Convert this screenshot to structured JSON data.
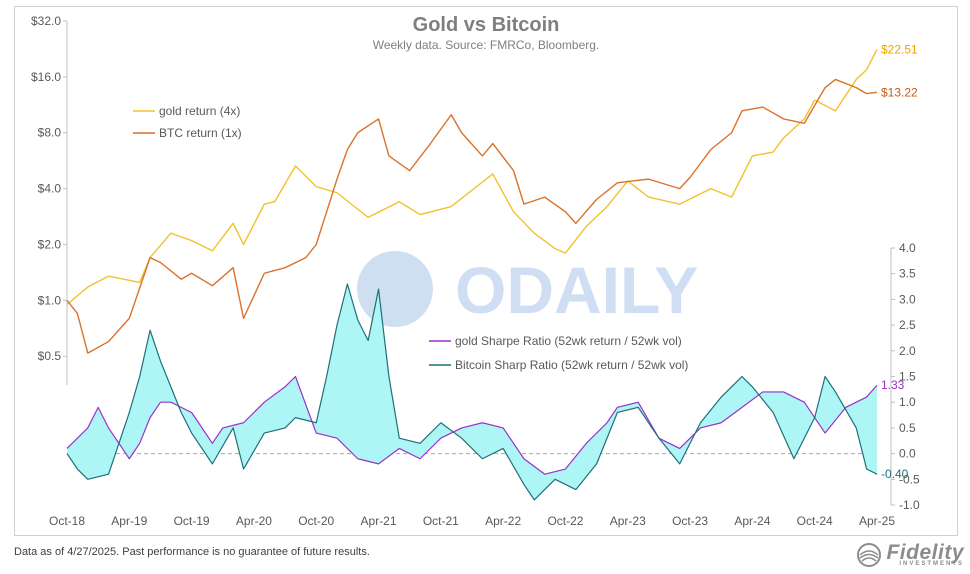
{
  "chart_data": [
    {
      "type": "line",
      "title": "Gold vs Bitcoin",
      "subtitle": "Weekly data.  Source: FMRCo, Bloomberg.",
      "y_scale": "log2",
      "ylim": [
        0.35,
        32
      ],
      "y_ticks": [
        "$32.0",
        "$16.0",
        "$8.0",
        "$4.0",
        "$2.0",
        "$1.0",
        "$0.5"
      ],
      "y_tick_values": [
        32,
        16,
        8,
        4,
        2,
        1,
        0.5
      ],
      "legend_position": "upper-left",
      "grid": false,
      "series": [
        {
          "name": "gold return (4x)",
          "color": "#f2c12e",
          "end_label": "$22.51",
          "points": [
            [
              "2018-10",
              0.95
            ],
            [
              "2018-12",
              1.18
            ],
            [
              "2019-02",
              1.35
            ],
            [
              "2019-05",
              1.25
            ],
            [
              "2019-06",
              1.7
            ],
            [
              "2019-08",
              2.3
            ],
            [
              "2019-10",
              2.1
            ],
            [
              "2019-12",
              1.85
            ],
            [
              "2020-02",
              2.6
            ],
            [
              "2020-03",
              2.0
            ],
            [
              "2020-05",
              3.3
            ],
            [
              "2020-06",
              3.4
            ],
            [
              "2020-08",
              5.3
            ],
            [
              "2020-10",
              4.1
            ],
            [
              "2020-12",
              3.8
            ],
            [
              "2021-03",
              2.8
            ],
            [
              "2021-06",
              3.4
            ],
            [
              "2021-08",
              2.9
            ],
            [
              "2021-11",
              3.2
            ],
            [
              "2022-03",
              4.8
            ],
            [
              "2022-05",
              3.0
            ],
            [
              "2022-07",
              2.3
            ],
            [
              "2022-09",
              1.9
            ],
            [
              "2022-10",
              1.8
            ],
            [
              "2022-12",
              2.5
            ],
            [
              "2023-02",
              3.2
            ],
            [
              "2023-04",
              4.4
            ],
            [
              "2023-06",
              3.6
            ],
            [
              "2023-09",
              3.3
            ],
            [
              "2023-12",
              4.0
            ],
            [
              "2024-02",
              3.6
            ],
            [
              "2024-04",
              6.0
            ],
            [
              "2024-06",
              6.3
            ],
            [
              "2024-07",
              7.5
            ],
            [
              "2024-09",
              9.5
            ],
            [
              "2024-10",
              12.0
            ],
            [
              "2024-12",
              10.5
            ],
            [
              "2025-02",
              15.5
            ],
            [
              "2025-03",
              17.5
            ],
            [
              "2025-04",
              22.51
            ]
          ]
        },
        {
          "name": "BTC return (1x)",
          "color": "#d9722b",
          "end_label": "$13.22",
          "points": [
            [
              "2018-10",
              1.0
            ],
            [
              "2018-11",
              0.85
            ],
            [
              "2018-12",
              0.52
            ],
            [
              "2019-02",
              0.6
            ],
            [
              "2019-04",
              0.8
            ],
            [
              "2019-06",
              1.7
            ],
            [
              "2019-07",
              1.6
            ],
            [
              "2019-09",
              1.3
            ],
            [
              "2019-10",
              1.4
            ],
            [
              "2019-12",
              1.2
            ],
            [
              "2020-02",
              1.5
            ],
            [
              "2020-03",
              0.8
            ],
            [
              "2020-05",
              1.4
            ],
            [
              "2020-07",
              1.5
            ],
            [
              "2020-09",
              1.7
            ],
            [
              "2020-10",
              2.0
            ],
            [
              "2020-11",
              3.0
            ],
            [
              "2020-12",
              4.5
            ],
            [
              "2021-01",
              6.5
            ],
            [
              "2021-02",
              8.0
            ],
            [
              "2021-04",
              9.5
            ],
            [
              "2021-05",
              6.0
            ],
            [
              "2021-07",
              5.0
            ],
            [
              "2021-09",
              7.0
            ],
            [
              "2021-11",
              10.0
            ],
            [
              "2021-12",
              8.0
            ],
            [
              "2022-02",
              6.0
            ],
            [
              "2022-03",
              7.0
            ],
            [
              "2022-05",
              5.0
            ],
            [
              "2022-06",
              3.3
            ],
            [
              "2022-08",
              3.6
            ],
            [
              "2022-10",
              3.0
            ],
            [
              "2022-11",
              2.6
            ],
            [
              "2023-01",
              3.5
            ],
            [
              "2023-03",
              4.3
            ],
            [
              "2023-06",
              4.5
            ],
            [
              "2023-09",
              4.0
            ],
            [
              "2023-10",
              4.6
            ],
            [
              "2023-12",
              6.5
            ],
            [
              "2024-02",
              8.0
            ],
            [
              "2024-03",
              10.5
            ],
            [
              "2024-05",
              11.0
            ],
            [
              "2024-07",
              9.5
            ],
            [
              "2024-09",
              9.0
            ],
            [
              "2024-11",
              14.0
            ],
            [
              "2024-12",
              15.5
            ],
            [
              "2025-02",
              14.0
            ],
            [
              "2025-03",
              13.0
            ],
            [
              "2025-04",
              13.22
            ]
          ]
        }
      ]
    },
    {
      "type": "area",
      "y_scale": "linear",
      "ylim": [
        -1.0,
        4.0
      ],
      "y_ticks": [
        "4.0",
        "3.5",
        "3.0",
        "2.5",
        "2.0",
        "1.5",
        "1.0",
        "0.5",
        "0.0",
        "-0.5",
        "-1.0"
      ],
      "y_tick_values": [
        4.0,
        3.5,
        3.0,
        2.5,
        2.0,
        1.5,
        1.0,
        0.5,
        0.0,
        -0.5,
        -1.0
      ],
      "zero_line": "dashed",
      "fill_between_series": "#aef5f5",
      "legend_position": "center",
      "series": [
        {
          "name": "gold Sharpe Ratio (52wk return / 52wk vol)",
          "color": "#9b30c8",
          "end_label": "1.33",
          "points": [
            [
              "2018-10",
              0.1
            ],
            [
              "2018-12",
              0.5
            ],
            [
              "2019-01",
              0.9
            ],
            [
              "2019-02",
              0.5
            ],
            [
              "2019-04",
              -0.1
            ],
            [
              "2019-05",
              0.2
            ],
            [
              "2019-06",
              0.7
            ],
            [
              "2019-07",
              1.0
            ],
            [
              "2019-08",
              1.0
            ],
            [
              "2019-10",
              0.8
            ],
            [
              "2019-12",
              0.2
            ],
            [
              "2020-01",
              0.5
            ],
            [
              "2020-03",
              0.6
            ],
            [
              "2020-05",
              1.0
            ],
            [
              "2020-07",
              1.3
            ],
            [
              "2020-08",
              1.5
            ],
            [
              "2020-10",
              0.4
            ],
            [
              "2020-12",
              0.3
            ],
            [
              "2021-02",
              -0.1
            ],
            [
              "2021-04",
              -0.2
            ],
            [
              "2021-06",
              0.1
            ],
            [
              "2021-08",
              -0.1
            ],
            [
              "2021-10",
              0.3
            ],
            [
              "2021-12",
              0.5
            ],
            [
              "2022-02",
              0.6
            ],
            [
              "2022-04",
              0.5
            ],
            [
              "2022-06",
              -0.1
            ],
            [
              "2022-08",
              -0.4
            ],
            [
              "2022-10",
              -0.3
            ],
            [
              "2022-12",
              0.2
            ],
            [
              "2023-02",
              0.6
            ],
            [
              "2023-03",
              0.9
            ],
            [
              "2023-05",
              1.0
            ],
            [
              "2023-07",
              0.3
            ],
            [
              "2023-09",
              0.1
            ],
            [
              "2023-11",
              0.5
            ],
            [
              "2024-01",
              0.6
            ],
            [
              "2024-03",
              0.9
            ],
            [
              "2024-05",
              1.2
            ],
            [
              "2024-07",
              1.2
            ],
            [
              "2024-09",
              1.0
            ],
            [
              "2024-11",
              0.4
            ],
            [
              "2025-01",
              0.9
            ],
            [
              "2025-03",
              1.1
            ],
            [
              "2025-04",
              1.33
            ]
          ]
        },
        {
          "name": "Bitcoin Sharp Ratio (52wk return / 52wk vol)",
          "color": "#1f6f7a",
          "end_label": "-0.40",
          "points": [
            [
              "2018-10",
              0.0
            ],
            [
              "2018-11",
              -0.3
            ],
            [
              "2018-12",
              -0.5
            ],
            [
              "2019-02",
              -0.4
            ],
            [
              "2019-04",
              0.8
            ],
            [
              "2019-05",
              1.5
            ],
            [
              "2019-06",
              2.4
            ],
            [
              "2019-07",
              1.8
            ],
            [
              "2019-09",
              0.8
            ],
            [
              "2019-10",
              0.4
            ],
            [
              "2019-12",
              -0.2
            ],
            [
              "2020-02",
              0.5
            ],
            [
              "2020-03",
              -0.3
            ],
            [
              "2020-05",
              0.4
            ],
            [
              "2020-07",
              0.5
            ],
            [
              "2020-08",
              0.7
            ],
            [
              "2020-10",
              0.6
            ],
            [
              "2020-11",
              1.5
            ],
            [
              "2020-12",
              2.5
            ],
            [
              "2021-01",
              3.3
            ],
            [
              "2021-02",
              2.6
            ],
            [
              "2021-03",
              2.2
            ],
            [
              "2021-04",
              3.2
            ],
            [
              "2021-05",
              1.5
            ],
            [
              "2021-06",
              0.3
            ],
            [
              "2021-08",
              0.2
            ],
            [
              "2021-10",
              0.6
            ],
            [
              "2021-12",
              0.3
            ],
            [
              "2022-02",
              -0.1
            ],
            [
              "2022-04",
              0.1
            ],
            [
              "2022-06",
              -0.6
            ],
            [
              "2022-07",
              -0.9
            ],
            [
              "2022-09",
              -0.5
            ],
            [
              "2022-11",
              -0.7
            ],
            [
              "2023-01",
              -0.2
            ],
            [
              "2023-03",
              0.8
            ],
            [
              "2023-05",
              0.9
            ],
            [
              "2023-07",
              0.3
            ],
            [
              "2023-09",
              -0.2
            ],
            [
              "2023-11",
              0.6
            ],
            [
              "2024-01",
              1.1
            ],
            [
              "2024-03",
              1.5
            ],
            [
              "2024-04",
              1.3
            ],
            [
              "2024-06",
              0.8
            ],
            [
              "2024-08",
              -0.1
            ],
            [
              "2024-10",
              0.7
            ],
            [
              "2024-11",
              1.5
            ],
            [
              "2024-12",
              1.2
            ],
            [
              "2025-02",
              0.5
            ],
            [
              "2025-03",
              -0.3
            ],
            [
              "2025-04",
              -0.4
            ]
          ]
        }
      ]
    }
  ],
  "x_ticks": [
    [
      "2018-10",
      "Oct-18"
    ],
    [
      "2019-04",
      "Apr-19"
    ],
    [
      "2019-10",
      "Oct-19"
    ],
    [
      "2020-04",
      "Apr-20"
    ],
    [
      "2020-10",
      "Oct-20"
    ],
    [
      "2021-04",
      "Apr-21"
    ],
    [
      "2021-10",
      "Oct-21"
    ],
    [
      "2022-04",
      "Apr-22"
    ],
    [
      "2022-10",
      "Oct-22"
    ],
    [
      "2023-04",
      "Apr-23"
    ],
    [
      "2023-10",
      "Oct-23"
    ],
    [
      "2024-04",
      "Apr-24"
    ],
    [
      "2024-10",
      "Oct-24"
    ],
    [
      "2025-04",
      "Apr-25"
    ]
  ],
  "watermark": "ODAILY",
  "footnote": "Data as of 4/27/2025. Past performance is no guarantee of future results.",
  "brand": {
    "name": "Fidelity",
    "sub": "INVESTMENTS"
  }
}
